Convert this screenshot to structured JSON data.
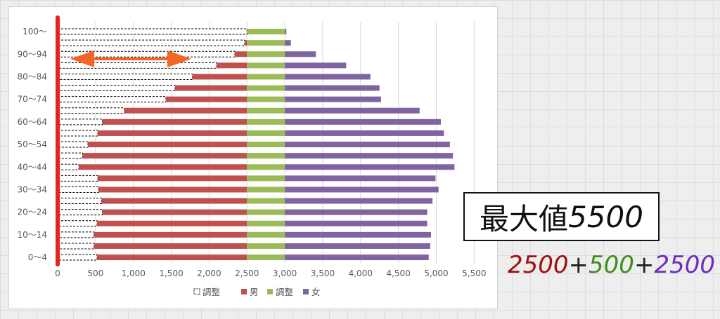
{
  "chart_data": {
    "type": "bar",
    "orientation": "horizontal",
    "stacked": true,
    "ylabels": [
      "100～",
      "",
      "90～94",
      "",
      "80～84",
      "",
      "70～74",
      "",
      "60～64",
      "",
      "50～54",
      "",
      "40～44",
      "",
      "30～34",
      "",
      "20～24",
      "",
      "10～14",
      "",
      "0～4"
    ],
    "xlim": [
      0,
      5500
    ],
    "xticks": [
      "0",
      "500",
      "1,000",
      "1,500",
      "2,000",
      "2,500",
      "3,000",
      "3,500",
      "4,000",
      "4,500",
      "5,000",
      "5,500"
    ],
    "grid": true,
    "legend_position": "bottom",
    "series": [
      {
        "name": "調整",
        "color": "#ffffff",
        "style": "dashed",
        "values": [
          2500,
          2470,
          2340,
          2100,
          1780,
          1550,
          1430,
          880,
          590,
          530,
          400,
          330,
          280,
          530,
          540,
          580,
          590,
          520,
          480,
          480,
          520
        ]
      },
      {
        "name": "男",
        "color": "#c0504d",
        "values": [
          0,
          30,
          160,
          400,
          720,
          950,
          1070,
          1620,
          1910,
          1970,
          2100,
          2170,
          2220,
          1970,
          1960,
          1920,
          1910,
          1980,
          2020,
          2020,
          1980
        ]
      },
      {
        "name": "調整",
        "color": "#9bbb59",
        "values": [
          500,
          500,
          500,
          500,
          500,
          500,
          500,
          500,
          500,
          500,
          500,
          500,
          500,
          500,
          500,
          500,
          500,
          500,
          500,
          500,
          500
        ]
      },
      {
        "name": "女",
        "color": "#8064a2",
        "values": [
          20,
          80,
          410,
          810,
          1130,
          1250,
          1270,
          1780,
          2060,
          2100,
          2180,
          2220,
          2240,
          1990,
          2030,
          1950,
          1880,
          1880,
          1930,
          1920,
          1900
        ]
      }
    ]
  },
  "annotation": {
    "box_label": "最大値",
    "box_value": "5500",
    "formula": [
      "2500",
      "+",
      "500",
      "+",
      "2500"
    ],
    "colors": {
      "red": "#a01010",
      "green": "#3e8e1e",
      "purple": "#6a2fc0",
      "marker": "#e8231f",
      "arrow": "#f26522"
    }
  }
}
